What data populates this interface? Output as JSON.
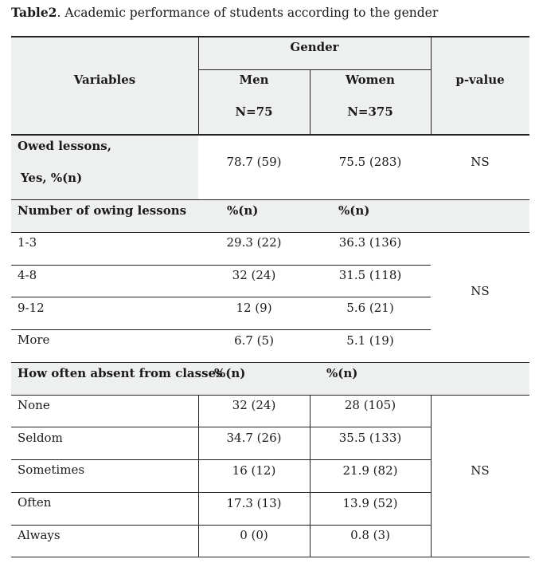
{
  "caption": {
    "label": "Table2",
    "text": ". Academic performance  of students according to the gender"
  },
  "header": {
    "variables": "Variables",
    "gender": "Gender",
    "men": "Men",
    "men_n": "N=75",
    "women": "Women",
    "women_n": "N=375",
    "p_value": "p-value"
  },
  "owed": {
    "label_line1": "Owed lessons,",
    "label_line2": "Yes, %(n)",
    "men": "78.7 (59)",
    "women": "75.5 (283)",
    "p": "NS"
  },
  "owing_section": {
    "title": "Number of  owing  lessons",
    "men_unit": "%(n)",
    "women_unit": "%(n)",
    "p": "NS",
    "rows": [
      {
        "label": "1-3",
        "men": "29.3 (22)",
        "women": "36.3 (136)"
      },
      {
        "label": "4-8",
        "men": "32 (24)",
        "women": "31.5 (118)"
      },
      {
        "label": "9-12",
        "men": "12 (9)",
        "women": "5.6 (21)"
      },
      {
        "label": "More",
        "men": "6.7 (5)",
        "women": "5.1 (19)"
      }
    ]
  },
  "absent_section": {
    "title": "How often absent from classes",
    "men_unit": "%(n)",
    "women_unit": "%(n)",
    "p": "NS",
    "rows": [
      {
        "label": "None",
        "men": "32 (24)",
        "women": "28 (105)"
      },
      {
        "label": "Seldom",
        "men": "34.7 (26)",
        "women": "35.5 (133)"
      },
      {
        "label": "Sometimes",
        "men": "16 (12)",
        "women": "21.9 (82)"
      },
      {
        "label": "Often",
        "men": "17.3 (13)",
        "women": "13.9 (52)"
      },
      {
        "label": "Always",
        "men": "0 (0)",
        "women": "0.8 (3)"
      }
    ]
  }
}
